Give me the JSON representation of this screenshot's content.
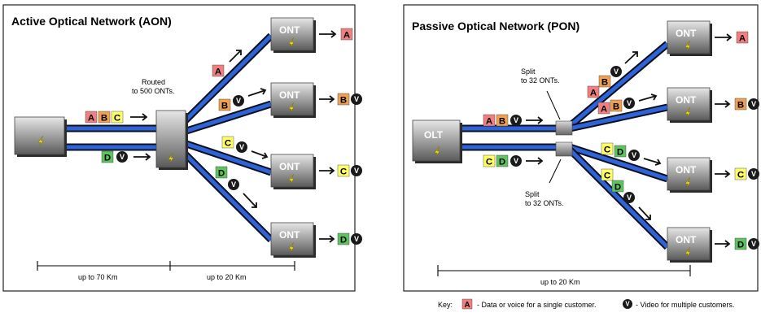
{
  "colors": {
    "A": "#f07f7f",
    "B": "#f0a050",
    "C": "#ffff66",
    "D": "#5ec45e",
    "video_badge": "#1a1a1a",
    "fiber": "#2f63d6",
    "box_light": "#e0e0e0",
    "box_dark": "#555555",
    "bolt": "#f2e030"
  },
  "aon": {
    "title": "Active Optical Network (AON)",
    "routed_note": [
      "Routed",
      "to 500 ONTs."
    ],
    "ont_label": "ONT",
    "letters": [
      "A",
      "B",
      "C",
      "D"
    ],
    "video_symbol": "V",
    "distance_1": "up to 70 Km",
    "distance_2": "up to 20 Km"
  },
  "pon": {
    "title": "Passive Optical Network (PON)",
    "olt_label": "OLT",
    "ont_label": "ONT",
    "split_note_top": [
      "Split",
      "to 32 ONTs."
    ],
    "split_note_bottom": [
      "Split",
      "to 32 ONTs."
    ],
    "distance": "up to 20 Km"
  },
  "key": {
    "label": "Key:",
    "letter": "A",
    "letter_desc": "- Data or voice for a single customer.",
    "video_symbol": "V",
    "video_desc": "- Video for multiple customers."
  }
}
